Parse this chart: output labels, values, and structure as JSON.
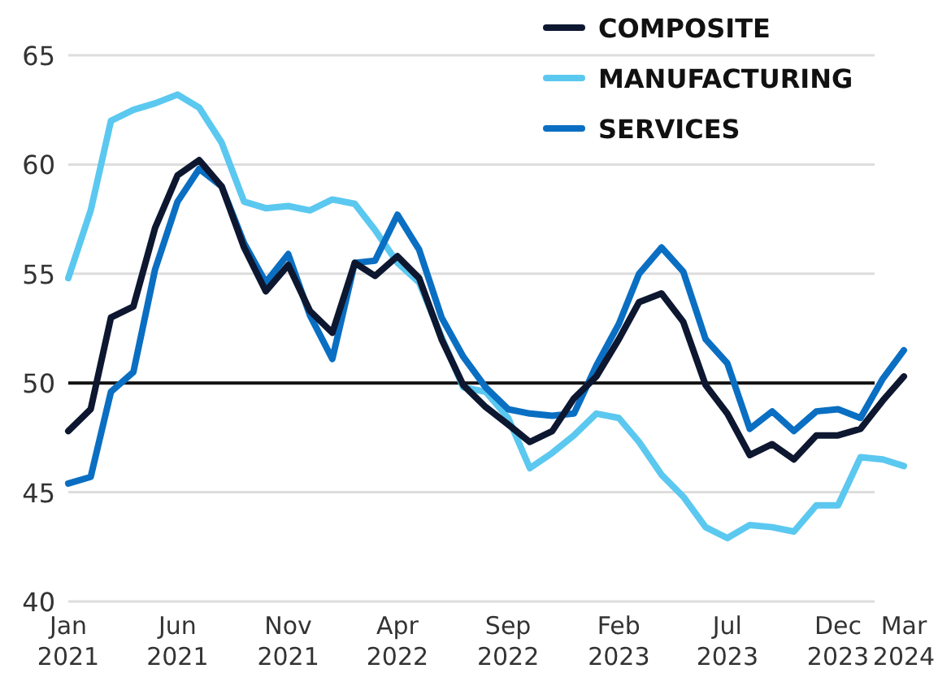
{
  "chart_data": {
    "type": "line",
    "x": [
      "2021-01",
      "2021-02",
      "2021-03",
      "2021-04",
      "2021-05",
      "2021-06",
      "2021-07",
      "2021-08",
      "2021-09",
      "2021-10",
      "2021-11",
      "2021-12",
      "2022-01",
      "2022-02",
      "2022-03",
      "2022-04",
      "2022-05",
      "2022-06",
      "2022-07",
      "2022-08",
      "2022-09",
      "2022-10",
      "2022-11",
      "2022-12",
      "2023-01",
      "2023-02",
      "2023-03",
      "2023-04",
      "2023-05",
      "2023-06",
      "2023-07",
      "2023-08",
      "2023-09",
      "2023-10",
      "2023-11",
      "2023-12",
      "2024-01",
      "2024-02",
      "2024-03"
    ],
    "series": [
      {
        "name": "COMPOSITE",
        "color": "#0d1730",
        "values": [
          47.8,
          48.8,
          53.0,
          53.5,
          57.1,
          59.5,
          60.2,
          59.0,
          56.2,
          54.2,
          55.4,
          53.3,
          52.3,
          55.5,
          54.9,
          55.8,
          54.8,
          52.0,
          49.9,
          48.9,
          48.1,
          47.3,
          47.8,
          49.3,
          50.3,
          52.0,
          53.7,
          54.1,
          52.8,
          49.9,
          48.6,
          46.7,
          47.2,
          46.5,
          47.6,
          47.6,
          47.9,
          49.2,
          50.3
        ]
      },
      {
        "name": "MANUFACTURING",
        "color": "#5bc8f0",
        "values": [
          54.8,
          57.9,
          62.0,
          62.5,
          62.8,
          63.2,
          62.6,
          61.0,
          58.3,
          58.0,
          58.1,
          57.9,
          58.4,
          58.2,
          57.0,
          55.5,
          54.6,
          52.1,
          49.8,
          49.6,
          48.4,
          46.1,
          46.8,
          47.6,
          48.6,
          48.4,
          47.3,
          45.8,
          44.8,
          43.4,
          42.9,
          43.5,
          43.4,
          43.2,
          44.4,
          44.4,
          46.6,
          46.5,
          46.2
        ]
      },
      {
        "name": "SERVICES",
        "color": "#0a6fc2",
        "values": [
          45.4,
          45.7,
          49.6,
          50.5,
          55.2,
          58.3,
          59.8,
          59.0,
          56.4,
          54.6,
          55.9,
          53.1,
          51.1,
          55.5,
          55.6,
          57.7,
          56.1,
          53.0,
          51.2,
          49.8,
          48.8,
          48.6,
          48.5,
          48.6,
          50.8,
          52.7,
          55.0,
          56.2,
          55.1,
          52.0,
          50.9,
          47.9,
          48.7,
          47.8,
          48.7,
          48.8,
          48.4,
          50.2,
          51.5
        ]
      }
    ],
    "xlim": [
      "2021-01",
      "2024-03"
    ],
    "xticks": [
      {
        "value": "2021-01",
        "label": "Jan 2021"
      },
      {
        "value": "2021-06",
        "label": "Jun 2021"
      },
      {
        "value": "2021-11",
        "label": "Nov 2021"
      },
      {
        "value": "2022-04",
        "label": "Apr 2022"
      },
      {
        "value": "2022-09",
        "label": "Sep 2022"
      },
      {
        "value": "2023-02",
        "label": "Feb 2023"
      },
      {
        "value": "2023-07",
        "label": "Jul 2023"
      },
      {
        "value": "2023-12",
        "label": "Dec 2023"
      },
      {
        "value": "2024-03",
        "label": "Mar 2024"
      }
    ],
    "ylim": [
      40,
      65
    ],
    "yticks": [
      40,
      45,
      50,
      55,
      60,
      65
    ],
    "grid": "y",
    "legend": "top right",
    "ref_lines": [
      {
        "axis": "y",
        "value": 50,
        "color": "#111111"
      }
    ]
  }
}
